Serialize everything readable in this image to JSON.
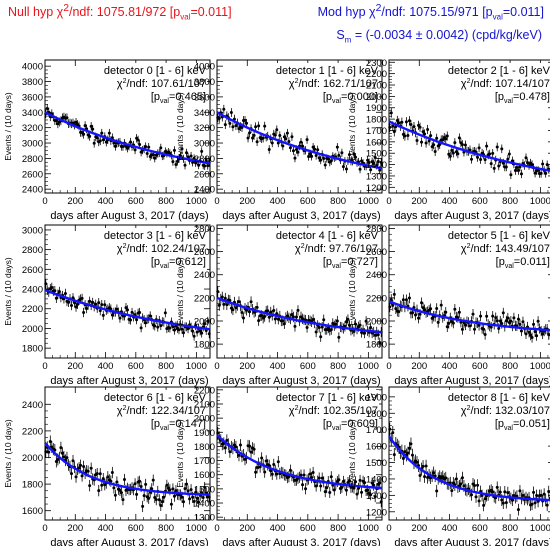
{
  "header": {
    "null_hyp_prefix": "Null hyp χ",
    "null_hyp_mid": "/ndf: 1075.81/972 [p",
    "null_hyp_suffix": "=0.011]",
    "mod_hyp_prefix": "Mod hyp χ",
    "mod_hyp_mid": "/ndf: 1075.15/971 [p",
    "mod_hyp_suffix": "=0.011]",
    "sup": "2",
    "sub": "val",
    "sm_prefix": "S",
    "sm_sub": "m",
    "sm_value": "= (-0.0034 ± 0.0042) (cpd/kg/keV)"
  },
  "colors": {
    "null_hyp": "#e8141a",
    "mod_hyp": "#1414d2",
    "fit_line": "#1414ff",
    "data_points": "#000000"
  },
  "axis_text": {
    "xlabel": "days after August 3, 2017 (days)",
    "ylabel": "Events / (10 days)",
    "chi_label": "/ndf:",
    "pval_label": "p",
    "pval_sub": "val"
  },
  "chart_data": [
    {
      "type": "scatter",
      "title": "detector 0 [1 - 6] keV",
      "chi2": "107.61/107",
      "pval": "=0.465",
      "xlim": [
        0,
        1090
      ],
      "ylim": [
        2350,
        4080
      ],
      "xticks": [
        0,
        200,
        400,
        600,
        800,
        1000
      ],
      "yticks": [
        2400,
        2600,
        2800,
        3000,
        3200,
        3400,
        3600,
        3800,
        4000
      ],
      "fit": {
        "form": "exp",
        "a": 1000,
        "b": 2400,
        "tau": 1000
      },
      "noise": 50,
      "seed": 11
    },
    {
      "type": "scatter",
      "title": "detector 1 [1 - 6] keV",
      "chi2": "162.71/107",
      "pval": "=0.000",
      "xlim": [
        0,
        1090
      ],
      "ylim": [
        2350,
        4080
      ],
      "xticks": [
        0,
        200,
        400,
        600,
        800,
        1000
      ],
      "yticks": [
        2400,
        2600,
        2800,
        3000,
        3200,
        3400,
        3600,
        3800,
        4000
      ],
      "fit": {
        "form": "exp",
        "a": 1100,
        "b": 2300,
        "tau": 1000
      },
      "noise": 60,
      "seed": 23
    },
    {
      "type": "scatter",
      "title": "detector 2 [1 - 6] keV",
      "chi2": "107.14/107",
      "pval": "=0.478",
      "xlim": [
        0,
        1090
      ],
      "ylim": [
        1150,
        2320
      ],
      "xticks": [
        0,
        200,
        400,
        600,
        800,
        1000
      ],
      "yticks": [
        1200,
        1300,
        1400,
        1500,
        1600,
        1700,
        1800,
        1900,
        2000,
        2100,
        2200,
        2300
      ],
      "fit": {
        "form": "exp",
        "a": 700,
        "b": 1080,
        "tau": 1100
      },
      "noise": 45,
      "seed": 37
    },
    {
      "type": "scatter",
      "title": "detector 3 [1 - 6] keV",
      "chi2": "102.24/107",
      "pval": "=0.612",
      "xlim": [
        0,
        1090
      ],
      "ylim": [
        1700,
        3050
      ],
      "xticks": [
        0,
        200,
        400,
        600,
        800,
        1000
      ],
      "yticks": [
        1800,
        2000,
        2200,
        2400,
        2600,
        2800,
        3000
      ],
      "fit": {
        "form": "exp",
        "a": 600,
        "b": 1790,
        "tau": 1000
      },
      "noise": 40,
      "seed": 41
    },
    {
      "type": "scatter",
      "title": "detector 4 [1 - 6] keV",
      "chi2": "97.76/107",
      "pval": "=0.727",
      "xlim": [
        0,
        1090
      ],
      "ylim": [
        1680,
        2830
      ],
      "xticks": [
        0,
        200,
        400,
        600,
        800,
        1000
      ],
      "yticks": [
        1800,
        2000,
        2200,
        2400,
        2600,
        2800
      ],
      "fit": {
        "form": "exp",
        "a": 400,
        "b": 1800,
        "tau": 800
      },
      "noise": 40,
      "seed": 53
    },
    {
      "type": "scatter",
      "title": "detector 5 [1 - 6] keV",
      "chi2": "143.49/107",
      "pval": "=0.011",
      "xlim": [
        0,
        1090
      ],
      "ylim": [
        1680,
        2830
      ],
      "xticks": [
        0,
        200,
        400,
        600,
        800,
        1000
      ],
      "yticks": [
        1800,
        2000,
        2200,
        2400,
        2600,
        2800
      ],
      "fit": {
        "form": "exp",
        "a": 300,
        "b": 1870,
        "tau": 600
      },
      "noise": 45,
      "seed": 67
    },
    {
      "type": "scatter",
      "title": "detector 6 [1 - 6] keV",
      "chi2": "122.34/107",
      "pval": "=0.147",
      "xlim": [
        0,
        1090
      ],
      "ylim": [
        1530,
        2530
      ],
      "xticks": [
        0,
        200,
        400,
        600,
        800,
        1000
      ],
      "yticks": [
        1600,
        1800,
        2000,
        2200,
        2400
      ],
      "fit": {
        "form": "exp",
        "a": 400,
        "b": 1710,
        "tau": 300
      },
      "noise": 40,
      "seed": 79
    },
    {
      "type": "scatter",
      "title": "detector 7 [1 - 6] keV",
      "chi2": "102.35/107",
      "pval": "=0.609",
      "xlim": [
        0,
        1090
      ],
      "ylim": [
        1280,
        2220
      ],
      "xticks": [
        0,
        200,
        400,
        600,
        800,
        1000
      ],
      "yticks": [
        1300,
        1400,
        1500,
        1600,
        1700,
        1800,
        1900,
        2000,
        2100,
        2200
      ],
      "fit": {
        "form": "exp",
        "a": 400,
        "b": 1480,
        "tau": 400
      },
      "noise": 35,
      "seed": 83
    },
    {
      "type": "scatter",
      "title": "detector 8 [1 - 6] keV",
      "chi2": "132.03/107",
      "pval": "=0.051",
      "xlim": [
        0,
        1090
      ],
      "ylim": [
        1150,
        1960
      ],
      "xticks": [
        0,
        200,
        400,
        600,
        800,
        1000
      ],
      "yticks": [
        1200,
        1300,
        1400,
        1500,
        1600,
        1700,
        1800,
        1900
      ],
      "fit": {
        "form": "exp",
        "a": 400,
        "b": 1260,
        "tau": 300
      },
      "noise": 35,
      "seed": 97
    }
  ]
}
